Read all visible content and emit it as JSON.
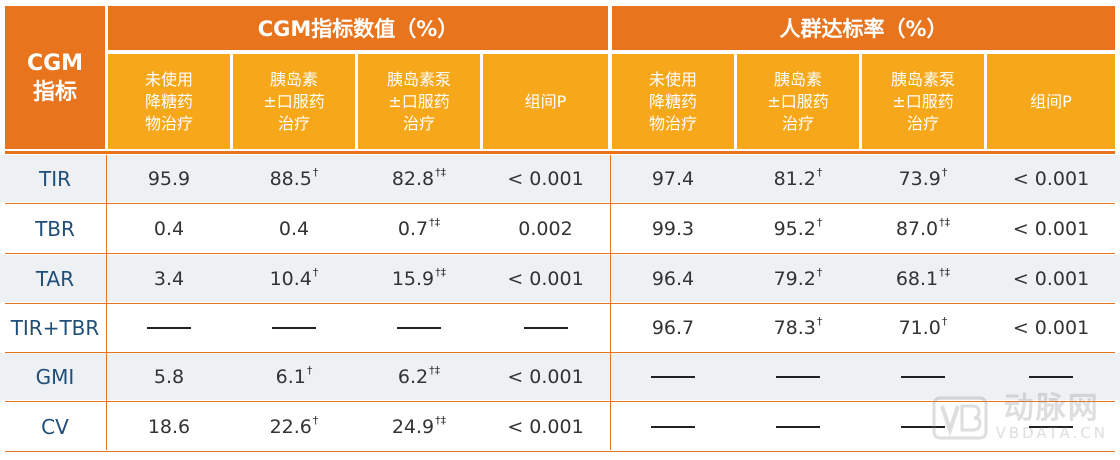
{
  "header": {
    "corner_label": "CGM\n指标",
    "group_left": "CGM指标数值（%）",
    "group_right": "人群达标率（%）",
    "subcols": [
      "未使用\n降糖药\n物治疗",
      "胰岛素\n±口服药\n治疗",
      "胰岛素泵\n±口服药\n治疗",
      "组间P"
    ]
  },
  "rows": [
    {
      "label": "TIR",
      "cells": [
        [
          "95.9",
          ""
        ],
        [
          "88.5",
          "†"
        ],
        [
          "82.8",
          "†‡"
        ],
        [
          "< 0.001",
          ""
        ],
        [
          "97.4",
          ""
        ],
        [
          "81.2",
          "†"
        ],
        [
          "73.9",
          "†"
        ],
        [
          "< 0.001",
          ""
        ]
      ]
    },
    {
      "label": "TBR",
      "cells": [
        [
          "0.4",
          ""
        ],
        [
          "0.4",
          ""
        ],
        [
          "0.7",
          "†‡"
        ],
        [
          "0.002",
          ""
        ],
        [
          "99.3",
          ""
        ],
        [
          "95.2",
          "†"
        ],
        [
          "87.0",
          "†‡"
        ],
        [
          "< 0.001",
          ""
        ]
      ]
    },
    {
      "label": "TAR",
      "cells": [
        [
          "3.4",
          ""
        ],
        [
          "10.4",
          "†"
        ],
        [
          "15.9",
          "†‡"
        ],
        [
          "< 0.001",
          ""
        ],
        [
          "96.4",
          ""
        ],
        [
          "79.2",
          "†"
        ],
        [
          "68.1",
          "†‡"
        ],
        [
          "< 0.001",
          ""
        ]
      ]
    },
    {
      "label": "TIR+TBR",
      "cells": [
        [
          "—",
          ""
        ],
        [
          "—",
          ""
        ],
        [
          "—",
          ""
        ],
        [
          "—",
          ""
        ],
        [
          "96.7",
          ""
        ],
        [
          "78.3",
          "†"
        ],
        [
          "71.0",
          "†"
        ],
        [
          "< 0.001",
          ""
        ]
      ]
    },
    {
      "label": "GMI",
      "cells": [
        [
          "5.8",
          ""
        ],
        [
          "6.1",
          "†"
        ],
        [
          "6.2",
          "†‡"
        ],
        [
          "< 0.001",
          ""
        ],
        [
          "—",
          ""
        ],
        [
          "—",
          ""
        ],
        [
          "—",
          ""
        ],
        [
          "—",
          ""
        ]
      ]
    },
    {
      "label": "CV",
      "cells": [
        [
          "18.6",
          ""
        ],
        [
          "22.6",
          "†"
        ],
        [
          "24.9",
          "†‡"
        ],
        [
          "< 0.001",
          ""
        ],
        [
          "—",
          ""
        ],
        [
          "—",
          ""
        ],
        [
          "—",
          ""
        ],
        [
          "—",
          ""
        ]
      ]
    }
  ],
  "watermark": {
    "brand": "动脉网",
    "url": "VBDATA.CN",
    "logo": "VB"
  },
  "colors": {
    "header_dark": "#E8741E",
    "header_light": "#F6A81A",
    "row_alt": "#EEF1F4",
    "row_plain": "#FFFFFF",
    "label_text": "#1F4E79"
  }
}
